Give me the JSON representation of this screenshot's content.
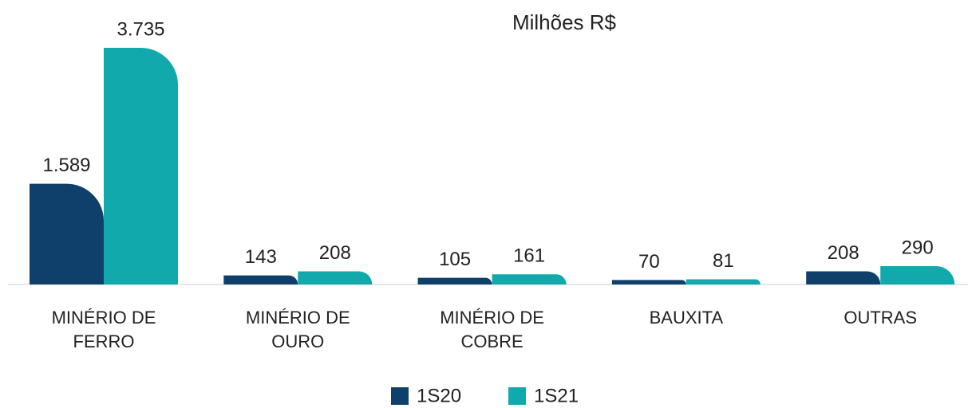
{
  "chart_data": {
    "type": "bar",
    "title": "Milhões R$",
    "categories": [
      "MINÉRIO DE FERRO",
      "MINÉRIO DE OURO",
      "MINÉRIO DE COBRE",
      "BAUXITA",
      "OUTRAS"
    ],
    "series": [
      {
        "name": "1S20",
        "color": "#0f3f6b",
        "values": [
          1589,
          143,
          105,
          70,
          208
        ],
        "value_labels": [
          "1.589",
          "143",
          "105",
          "70",
          "208"
        ]
      },
      {
        "name": "1S21",
        "color": "#12a9ad",
        "values": [
          3735,
          208,
          161,
          81,
          290
        ],
        "value_labels": [
          "3.735",
          "208",
          "161",
          "81",
          "290"
        ]
      }
    ]
  }
}
